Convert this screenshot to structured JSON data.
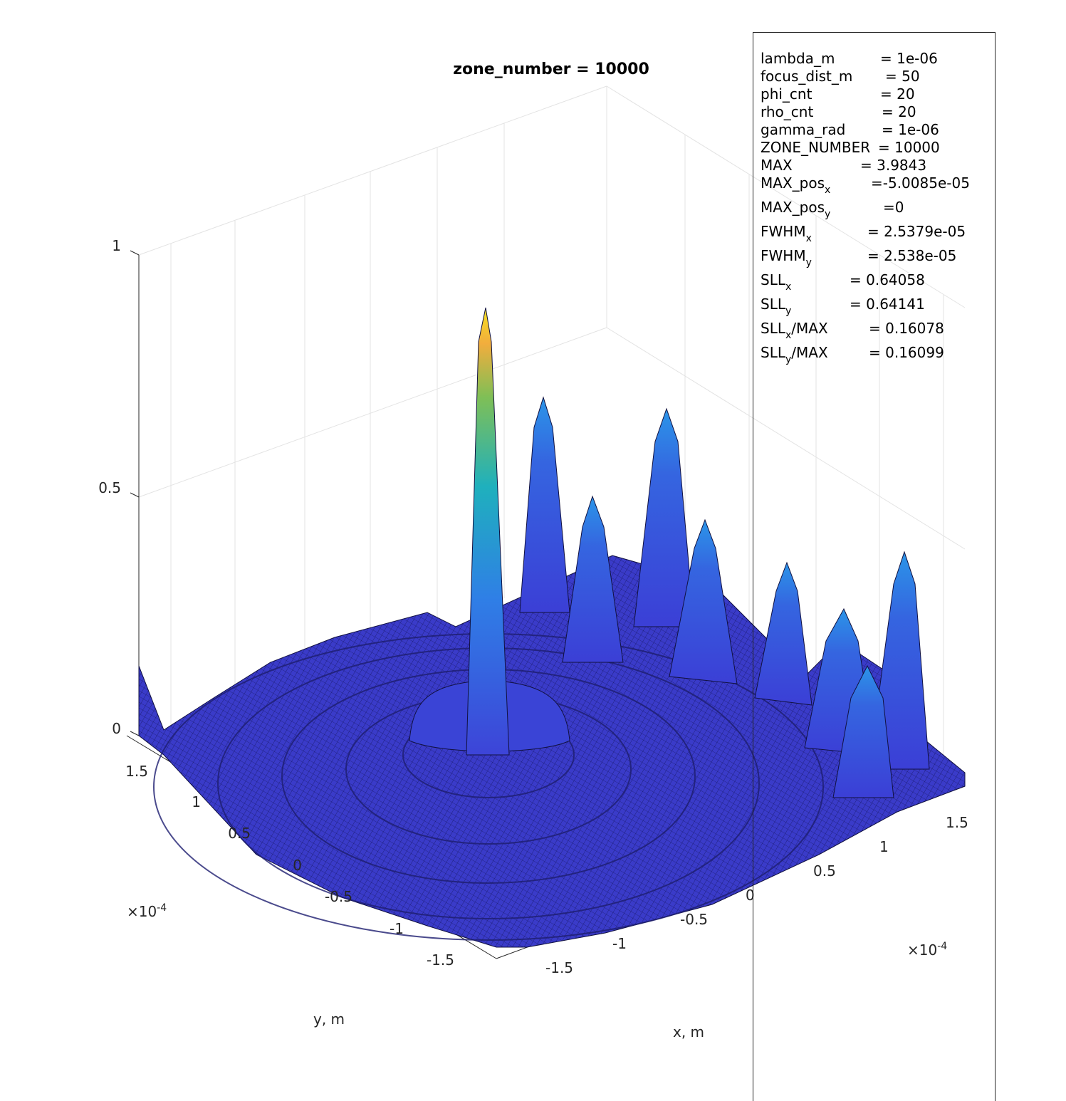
{
  "chart_data": {
    "type": "surface",
    "title": "zone_number = 10000",
    "xlabel": "x, m",
    "ylabel": "y, m",
    "zlabel": "",
    "x_exponent_label": "×10",
    "x_exponent_power": "-4",
    "y_exponent_label": "×10",
    "y_exponent_power": "-4",
    "xlim": [
      -0.00017,
      0.00017
    ],
    "ylim": [
      -0.00017,
      0.00017
    ],
    "zlim": [
      0,
      1
    ],
    "x_ticks": [
      "-1.5",
      "-1",
      "-0.5",
      "0",
      "0.5",
      "1",
      "1.5"
    ],
    "y_ticks": [
      "-1.5",
      "-1",
      "-0.5",
      "0",
      "0.5",
      "1",
      "1.5"
    ],
    "z_ticks": [
      "0",
      "0.5",
      "1"
    ],
    "grid": true,
    "colormap": "parula",
    "peak": {
      "x": 0,
      "y": 0,
      "z": 0.88
    },
    "side_lobes": [
      {
        "x": 5.5e-05,
        "y": 0.000155,
        "z": 0.55
      },
      {
        "x": 0.00012,
        "y": 0.00012,
        "z": 0.5
      },
      {
        "x": 0.00016,
        "y": 1.5e-05,
        "z": 0.42
      }
    ]
  },
  "legend": {
    "rows": [
      {
        "name": "lambda_m",
        "sub": "",
        "tail": "",
        "value": "= 1e-06"
      },
      {
        "name": "focus_dist_m",
        "sub": "",
        "tail": "",
        "value": "= 50"
      },
      {
        "name": "phi_cnt",
        "sub": "",
        "tail": "",
        "value": "= 20"
      },
      {
        "name": "rho_cnt",
        "sub": "",
        "tail": "",
        "value": "= 20"
      },
      {
        "name": "gamma_rad",
        "sub": "",
        "tail": "",
        "value": "= 1e-06"
      },
      {
        "name": "ZONE_NUMBER",
        "sub": "",
        "tail": "",
        "value": "= 10000"
      },
      {
        "name": "MAX",
        "sub": "",
        "tail": "",
        "value": "= 3.9843"
      },
      {
        "name": "MAX_pos",
        "sub": "x",
        "tail": "",
        "value": "=-5.0085e-05"
      },
      {
        "name": "MAX_pos",
        "sub": "y",
        "tail": "",
        "value": "=0"
      },
      {
        "name": "FWHM",
        "sub": "x",
        "tail": "",
        "value": "= 2.5379e-05"
      },
      {
        "name": "FWHM",
        "sub": "y",
        "tail": "",
        "value": "= 2.538e-05"
      },
      {
        "name": "SLL",
        "sub": "x",
        "tail": "",
        "value": "= 0.64058"
      },
      {
        "name": "SLL",
        "sub": "y",
        "tail": "",
        "value": "= 0.64141"
      },
      {
        "name": "SLL",
        "sub": "x",
        "tail": "/MAX",
        "value": "= 0.16078"
      },
      {
        "name": "SLL",
        "sub": "y",
        "tail": "/MAX",
        "value": "= 0.16099"
      }
    ]
  }
}
